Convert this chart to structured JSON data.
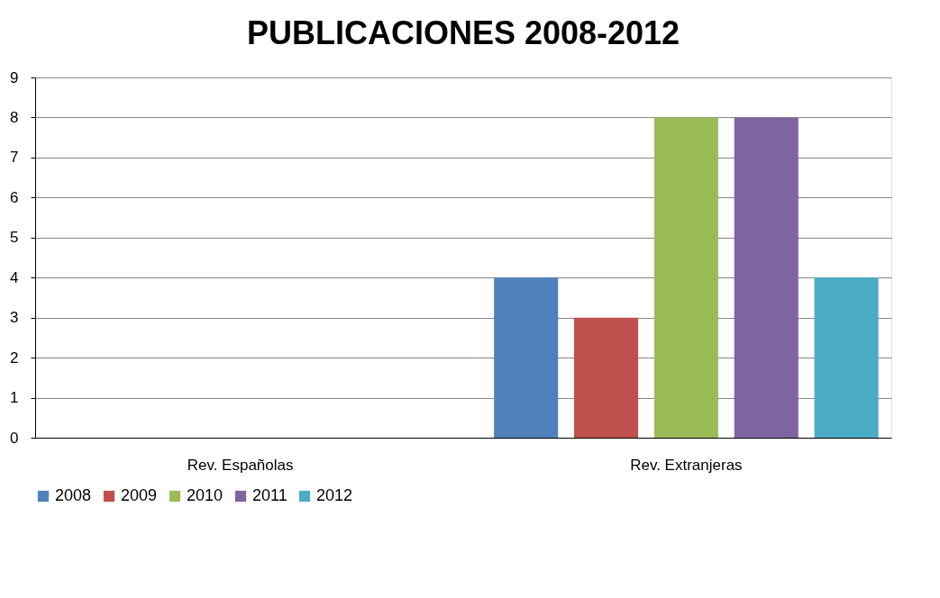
{
  "chart_data": {
    "type": "bar",
    "title": "PUBLICACIONES 2008-2012",
    "categories": [
      "Rev. Españolas",
      "Rev. Extranjeras"
    ],
    "series": [
      {
        "name": "2008",
        "color": "#4f81bd",
        "values": [
          0,
          4
        ]
      },
      {
        "name": "2009",
        "color": "#c0504d",
        "values": [
          0,
          3
        ]
      },
      {
        "name": "2010",
        "color": "#9bbb59",
        "values": [
          0,
          8
        ]
      },
      {
        "name": "2011",
        "color": "#8064a2",
        "values": [
          0,
          8
        ]
      },
      {
        "name": "2012",
        "color": "#4bacc6",
        "values": [
          0,
          4
        ]
      }
    ],
    "ylim": [
      0,
      9
    ],
    "yticks": [
      0,
      1,
      2,
      3,
      4,
      5,
      6,
      7,
      8,
      9
    ],
    "grid": "y",
    "legend": "bottom"
  }
}
